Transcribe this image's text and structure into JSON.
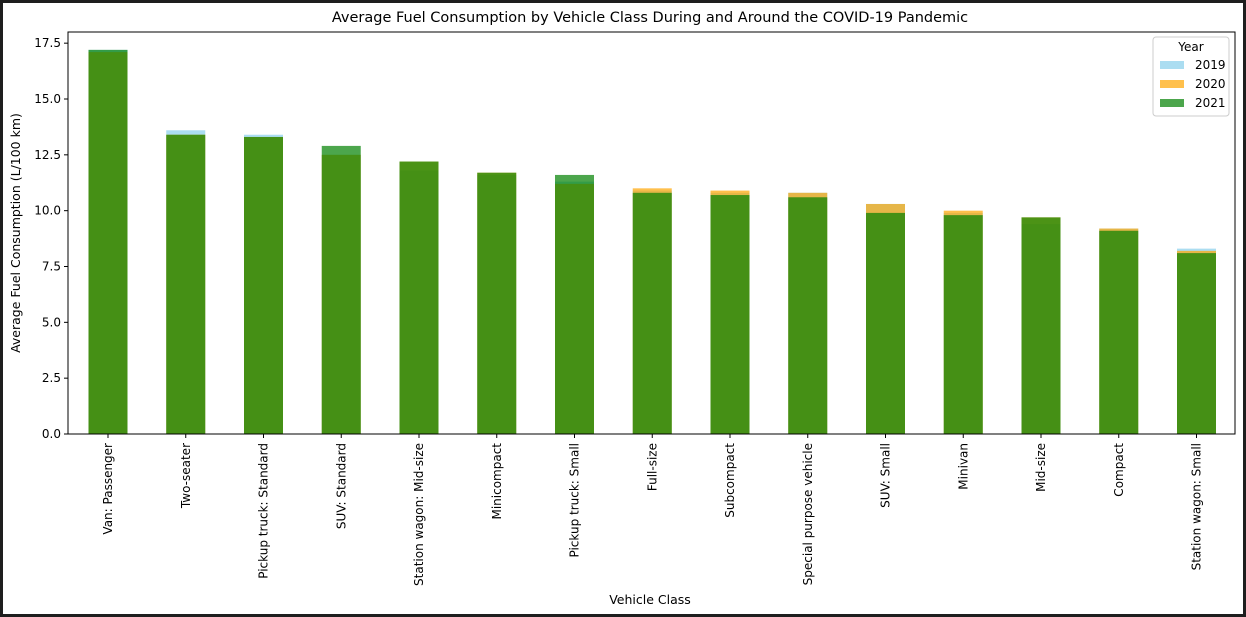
{
  "chart_data": {
    "type": "bar",
    "title": "Average Fuel Consumption by Vehicle Class During and Around the COVID-19 Pandemic",
    "xlabel": "Vehicle Class",
    "ylabel": "Average Fuel Consumption (L/100 km)",
    "ylim": [
      0,
      18.0
    ],
    "yticks": [
      "0.0",
      "2.5",
      "5.0",
      "7.5",
      "10.0",
      "12.5",
      "15.0",
      "17.5"
    ],
    "grid": false,
    "legend": {
      "title": "Year",
      "placement": "top-right"
    },
    "stacked": false,
    "overlaid": true,
    "categories": [
      "Van: Passenger",
      "Two-seater",
      "Pickup truck: Standard",
      "SUV: Standard",
      "Station wagon: Mid-size",
      "Minicompact",
      "Pickup truck: Small",
      "Full-size",
      "Subcompact",
      "Special purpose vehicle",
      "SUV: Small",
      "Minivan",
      "Mid-size",
      "Compact",
      "Station wagon: Small"
    ],
    "series": [
      {
        "name": "2019",
        "color": "#87ceeb",
        "opacity": 0.7,
        "values": [
          17.2,
          13.6,
          13.4,
          12.5,
          11.8,
          11.6,
          11.3,
          10.9,
          10.8,
          10.8,
          10.3,
          9.9,
          9.4,
          9.2,
          8.3
        ]
      },
      {
        "name": "2020",
        "color": "#ffa500",
        "opacity": 0.7,
        "values": [
          17.1,
          13.4,
          13.3,
          12.5,
          12.2,
          11.7,
          11.2,
          11.0,
          10.9,
          10.8,
          10.3,
          10.0,
          9.7,
          9.2,
          8.2
        ]
      },
      {
        "name": "2021",
        "color": "#008000",
        "opacity": 0.7,
        "values": [
          17.2,
          13.4,
          13.3,
          12.9,
          12.2,
          11.7,
          11.6,
          10.8,
          10.7,
          10.6,
          9.9,
          9.8,
          9.7,
          9.1,
          8.1
        ]
      }
    ]
  }
}
